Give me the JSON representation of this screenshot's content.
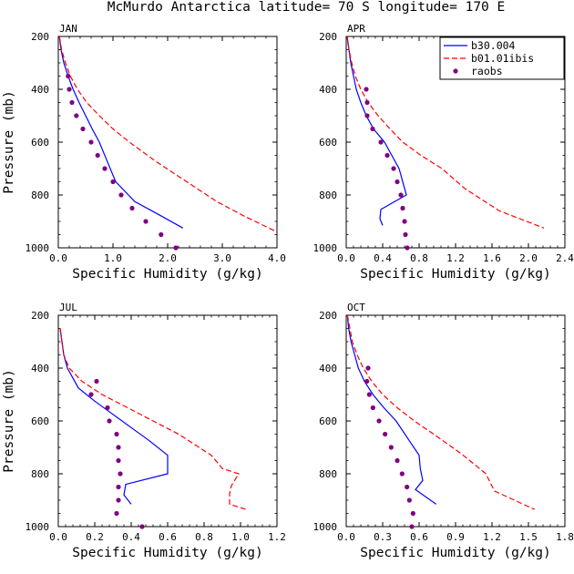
{
  "figure": {
    "title": "McMurdo Antarctica  latitude= 70 S longitude= 170 E"
  },
  "legend": {
    "placement": "top-right of APR panel",
    "entries": [
      {
        "label": "b30.004",
        "style": "solid",
        "color": "#0000ff"
      },
      {
        "label": "b01.01ibis",
        "style": "dashed",
        "color": "#ff0000"
      },
      {
        "label": "raobs",
        "style": "markers",
        "color": "#800080"
      }
    ]
  },
  "chart_data": [
    {
      "type": "line",
      "month": "JAN",
      "xlabel": "Specific Humidity (g/kg)",
      "ylabel": "Pressure (mb)",
      "xlim": [
        0,
        4.0
      ],
      "ylim": [
        1000,
        200
      ],
      "xticks": [
        "0.0",
        "1.0",
        "2.0",
        "3.0",
        "4.0"
      ],
      "yticks": [
        "200",
        "400",
        "600",
        "800",
        "1000"
      ],
      "series": [
        {
          "name": "b30.004",
          "points": [
            [
              0.02,
              200
            ],
            [
              0.05,
              250
            ],
            [
              0.1,
              300
            ],
            [
              0.18,
              350
            ],
            [
              0.27,
              400
            ],
            [
              0.38,
              450
            ],
            [
              0.5,
              500
            ],
            [
              0.62,
              550
            ],
            [
              0.75,
              600
            ],
            [
              0.9,
              675
            ],
            [
              1.05,
              750
            ],
            [
              1.4,
              825
            ],
            [
              1.8,
              870
            ],
            [
              2.28,
              925
            ]
          ]
        },
        {
          "name": "b01.01ibis",
          "points": [
            [
              0.02,
              200
            ],
            [
              0.06,
              250
            ],
            [
              0.13,
              300
            ],
            [
              0.22,
              350
            ],
            [
              0.35,
              400
            ],
            [
              0.52,
              450
            ],
            [
              0.75,
              500
            ],
            [
              1.0,
              550
            ],
            [
              1.3,
              600
            ],
            [
              1.8,
              675
            ],
            [
              2.35,
              750
            ],
            [
              2.9,
              825
            ],
            [
              3.4,
              880
            ],
            [
              3.95,
              935
            ]
          ]
        },
        {
          "name": "raobs",
          "points": [
            [
              0.18,
              350
            ],
            [
              0.2,
              400
            ],
            [
              0.25,
              450
            ],
            [
              0.33,
              500
            ],
            [
              0.45,
              550
            ],
            [
              0.6,
              600
            ],
            [
              0.72,
              650
            ],
            [
              0.85,
              700
            ],
            [
              1.0,
              750
            ],
            [
              1.15,
              800
            ],
            [
              1.35,
              850
            ],
            [
              1.6,
              900
            ],
            [
              1.88,
              950
            ],
            [
              2.15,
              1000
            ]
          ]
        }
      ]
    },
    {
      "type": "line",
      "month": "APR",
      "xlabel": "Specific Humidity (g/kg)",
      "ylabel": "",
      "xlim": [
        0,
        2.4
      ],
      "ylim": [
        1000,
        200
      ],
      "xticks": [
        "0.0",
        "0.4",
        "0.8",
        "1.2",
        "1.6",
        "2.0",
        "2.4"
      ],
      "yticks": [
        "200",
        "400",
        "600",
        "800",
        "1000"
      ],
      "series": [
        {
          "name": "b30.004",
          "points": [
            [
              0.01,
              200
            ],
            [
              0.03,
              250
            ],
            [
              0.05,
              300
            ],
            [
              0.08,
              350
            ],
            [
              0.11,
              400
            ],
            [
              0.16,
              450
            ],
            [
              0.22,
              500
            ],
            [
              0.3,
              550
            ],
            [
              0.42,
              600
            ],
            [
              0.5,
              650
            ],
            [
              0.58,
              700
            ],
            [
              0.66,
              800
            ],
            [
              0.38,
              855
            ],
            [
              0.37,
              890
            ],
            [
              0.4,
              915
            ]
          ]
        },
        {
          "name": "b01.01ibis",
          "points": [
            [
              0.01,
              200
            ],
            [
              0.03,
              250
            ],
            [
              0.06,
              300
            ],
            [
              0.1,
              350
            ],
            [
              0.16,
              400
            ],
            [
              0.24,
              450
            ],
            [
              0.35,
              500
            ],
            [
              0.48,
              550
            ],
            [
              0.62,
              600
            ],
            [
              0.82,
              650
            ],
            [
              1.05,
              700
            ],
            [
              1.3,
              775
            ],
            [
              1.68,
              860
            ],
            [
              2.17,
              925
            ]
          ]
        },
        {
          "name": "raobs",
          "points": [
            [
              0.22,
              400
            ],
            [
              0.23,
              450
            ],
            [
              0.23,
              500
            ],
            [
              0.29,
              550
            ],
            [
              0.38,
              600
            ],
            [
              0.45,
              650
            ],
            [
              0.52,
              700
            ],
            [
              0.56,
              750
            ],
            [
              0.6,
              800
            ],
            [
              0.62,
              850
            ],
            [
              0.64,
              900
            ],
            [
              0.65,
              950
            ],
            [
              0.67,
              1000
            ]
          ]
        }
      ]
    },
    {
      "type": "line",
      "month": "JUL",
      "xlabel": "Specific Humidity (g/kg)",
      "ylabel": "Pressure (mb)",
      "xlim": [
        0,
        1.2
      ],
      "ylim": [
        1000,
        200
      ],
      "xticks": [
        "0.0",
        "0.2",
        "0.4",
        "0.6",
        "0.8",
        "1.0",
        "1.2"
      ],
      "yticks": [
        "200",
        "400",
        "600",
        "800",
        "1000"
      ],
      "series": [
        {
          "name": "b30.004",
          "points": [
            [
              0.01,
              250
            ],
            [
              0.02,
              300
            ],
            [
              0.03,
              350
            ],
            [
              0.05,
              400
            ],
            [
              0.11,
              475
            ],
            [
              0.2,
              525
            ],
            [
              0.3,
              575
            ],
            [
              0.4,
              625
            ],
            [
              0.5,
              675
            ],
            [
              0.6,
              730
            ],
            [
              0.6,
              800
            ],
            [
              0.37,
              840
            ],
            [
              0.36,
              880
            ],
            [
              0.4,
              915
            ]
          ]
        },
        {
          "name": "b01.01ibis",
          "points": [
            [
              0.01,
              250
            ],
            [
              0.02,
              300
            ],
            [
              0.03,
              350
            ],
            [
              0.06,
              400
            ],
            [
              0.13,
              450
            ],
            [
              0.24,
              500
            ],
            [
              0.38,
              550
            ],
            [
              0.52,
              600
            ],
            [
              0.66,
              650
            ],
            [
              0.84,
              730
            ],
            [
              0.9,
              780
            ],
            [
              0.99,
              800
            ],
            [
              0.95,
              845
            ],
            [
              0.94,
              875
            ],
            [
              0.94,
              915
            ],
            [
              1.03,
              935
            ]
          ]
        },
        {
          "name": "raobs",
          "points": [
            [
              0.21,
              450
            ],
            [
              0.18,
              500
            ],
            [
              0.27,
              550
            ],
            [
              0.28,
              600
            ],
            [
              0.32,
              650
            ],
            [
              0.33,
              700
            ],
            [
              0.33,
              750
            ],
            [
              0.34,
              800
            ],
            [
              0.33,
              850
            ],
            [
              0.33,
              900
            ],
            [
              0.32,
              950
            ],
            [
              0.46,
              1000
            ]
          ]
        }
      ]
    },
    {
      "type": "line",
      "month": "OCT",
      "xlabel": "Specific Humidity (g/kg)",
      "ylabel": "",
      "xlim": [
        0,
        1.8
      ],
      "ylim": [
        1000,
        200
      ],
      "xticks": [
        "0.0",
        "0.3",
        "0.6",
        "0.9",
        "1.2",
        "1.5",
        "1.8"
      ],
      "yticks": [
        "200",
        "400",
        "600",
        "800",
        "1000"
      ],
      "series": [
        {
          "name": "b30.004",
          "points": [
            [
              0.01,
              200
            ],
            [
              0.02,
              250
            ],
            [
              0.04,
              300
            ],
            [
              0.07,
              350
            ],
            [
              0.1,
              400
            ],
            [
              0.15,
              450
            ],
            [
              0.22,
              500
            ],
            [
              0.31,
              550
            ],
            [
              0.41,
              600
            ],
            [
              0.52,
              675
            ],
            [
              0.6,
              730
            ],
            [
              0.61,
              780
            ],
            [
              0.63,
              825
            ],
            [
              0.57,
              860
            ],
            [
              0.74,
              915
            ]
          ]
        },
        {
          "name": "b01.01ibis",
          "points": [
            [
              0.01,
              200
            ],
            [
              0.03,
              250
            ],
            [
              0.05,
              300
            ],
            [
              0.09,
              350
            ],
            [
              0.14,
              400
            ],
            [
              0.21,
              450
            ],
            [
              0.3,
              500
            ],
            [
              0.42,
              550
            ],
            [
              0.56,
              600
            ],
            [
              0.72,
              650
            ],
            [
              0.95,
              725
            ],
            [
              1.15,
              800
            ],
            [
              1.22,
              865
            ],
            [
              1.55,
              935
            ]
          ]
        },
        {
          "name": "raobs",
          "points": [
            [
              0.18,
              400
            ],
            [
              0.17,
              450
            ],
            [
              0.19,
              500
            ],
            [
              0.22,
              550
            ],
            [
              0.27,
              600
            ],
            [
              0.32,
              650
            ],
            [
              0.37,
              700
            ],
            [
              0.42,
              750
            ],
            [
              0.46,
              800
            ],
            [
              0.5,
              850
            ],
            [
              0.52,
              900
            ],
            [
              0.55,
              950
            ],
            [
              0.54,
              1000
            ]
          ]
        }
      ]
    }
  ]
}
